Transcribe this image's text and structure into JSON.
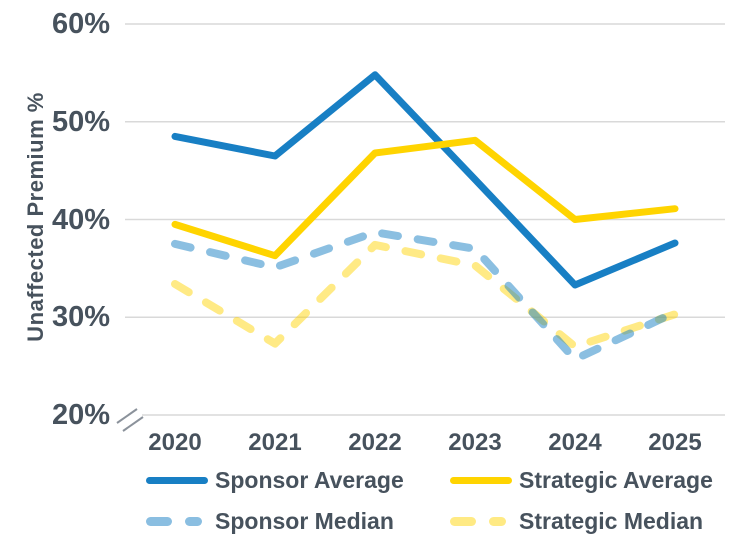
{
  "chart_data": {
    "type": "line",
    "title": "",
    "xlabel": "",
    "ylabel": "Unaffected Premium %",
    "x_labels": [
      "2020",
      "2021",
      "2022",
      "2023",
      "2024",
      "2025"
    ],
    "y_tick_labels": [
      "60%",
      "50%",
      "40%",
      "30%",
      "20%"
    ],
    "ylim": [
      20,
      60
    ],
    "axis_break_at_origin": true,
    "grid": true,
    "legend_position": "bottom",
    "series": [
      {
        "name": "Sponsor Average",
        "line_style": "solid",
        "color": "#187fc4",
        "opacity": 1,
        "values": [
          48.5,
          46.5,
          54.8,
          44.1,
          33.3,
          37.6
        ]
      },
      {
        "name": "Strategic Average",
        "line_style": "solid",
        "color": "#ffd400",
        "opacity": 1,
        "values": [
          39.5,
          36.3,
          46.8,
          48.1,
          40.0,
          41.1
        ]
      },
      {
        "name": "Sponsor Median",
        "line_style": "dashed",
        "color": "#187fc4",
        "opacity": 0.5,
        "values": [
          37.5,
          35.1,
          38.7,
          37.0,
          25.7,
          30.5
        ]
      },
      {
        "name": "Strategic Median",
        "line_style": "dashed",
        "color": "#ffd400",
        "opacity": 0.48,
        "values": [
          33.4,
          27.3,
          37.4,
          35.3,
          27.0,
          30.3
        ]
      }
    ]
  },
  "colors": {
    "axis_text": "#47525d",
    "gridline": "#d9d9d9",
    "axis_break_mark": "#8b929b",
    "background": "#ffffff",
    "sponsor_blue": "#187fc4",
    "strategic_yellow": "#ffd400",
    "sponsor_median_light_blue": "#8bbfe1",
    "strategic_median_light_yellow": "#ffe987"
  }
}
